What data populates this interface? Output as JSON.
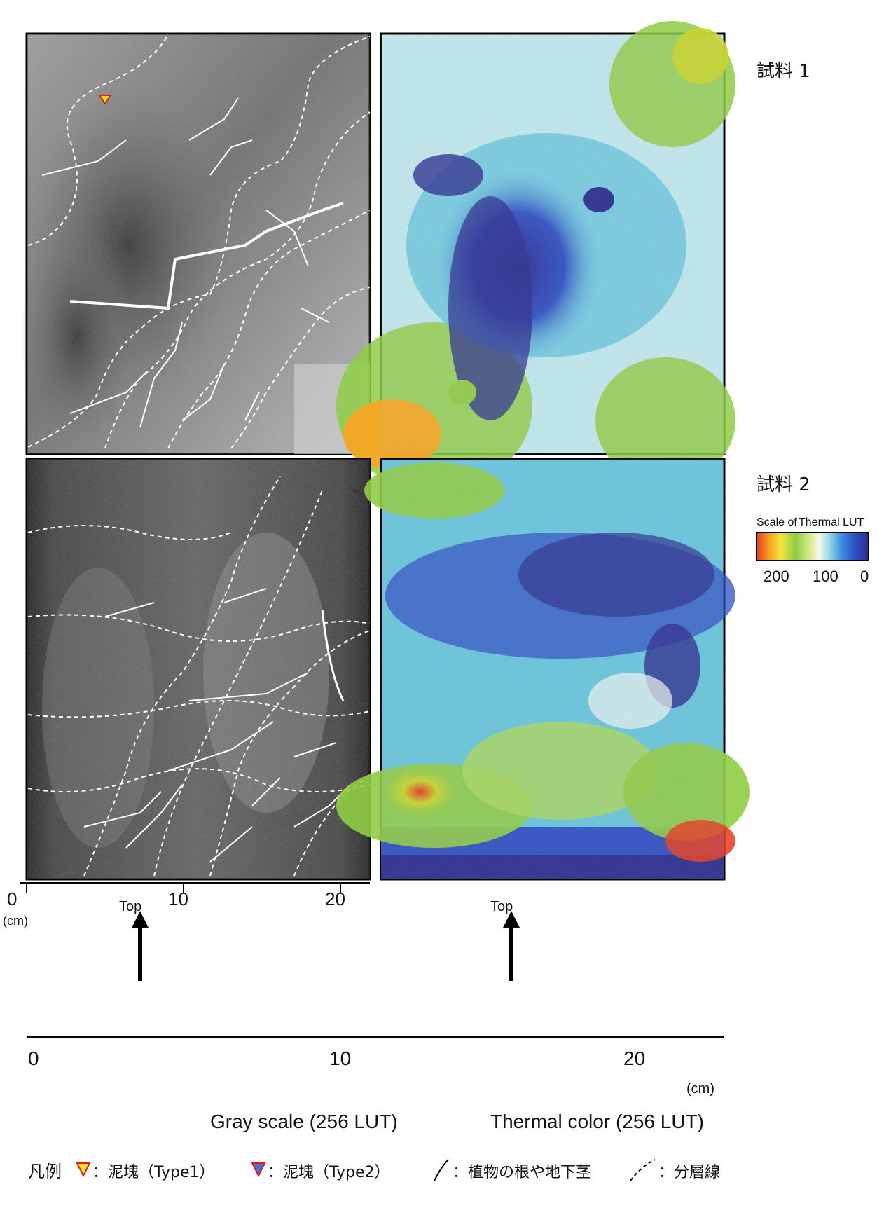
{
  "colors": {
    "thermal_scale": [
      "#2a2b8f",
      "#2f4fc4",
      "#3b8ee0",
      "#66c4dd",
      "#bfe9ef",
      "#f4f8f2",
      "#d9ec8a",
      "#8fcc45",
      "#c8d62e",
      "#f1e43a",
      "#f5a623",
      "#e63a1e"
    ],
    "marker_type1_fill": "#f2e11e",
    "marker_type1_stroke": "#e21a1a",
    "marker_type2_fill": "#4f6fd8",
    "marker_type2_stroke": "#e21a1a"
  },
  "labels": {
    "unit_cm": "(cm)",
    "top": "Top",
    "sample1": "試料 1",
    "sample2": "試料 2",
    "gray_caption": "Gray scale (256 LUT)",
    "thermal_caption": "Thermal color (256 LUT)",
    "scale_title_1": "Scale of",
    "scale_title_2": "Thermal LUT",
    "scale_ticks": [
      "0",
      "100",
      "200"
    ],
    "depth_ticks": [
      "0",
      "10",
      "20"
    ],
    "horizontal_ticks": [
      "0",
      "10",
      "20"
    ]
  },
  "legend": {
    "title": "凡例",
    "type1": "：泥塊（Type1）",
    "type2": "：泥塊（Type2）",
    "root": "：植物の根や地下茎",
    "boundary": "：分層線"
  }
}
